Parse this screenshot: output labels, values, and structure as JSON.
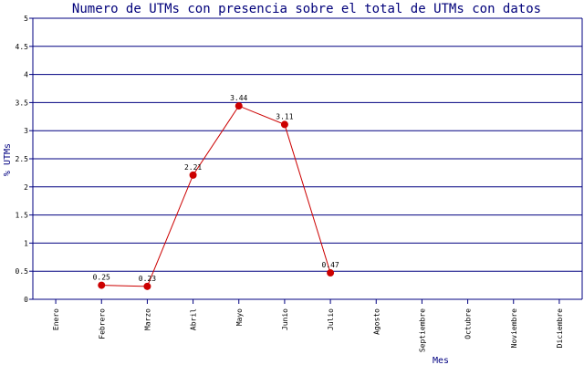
{
  "chart_data": {
    "type": "line",
    "title": "Numero de UTMs con presencia sobre el total de UTMs con datos",
    "xlabel": "Mes",
    "ylabel": "% UTMs",
    "categories": [
      "Enero",
      "Febrero",
      "Marzo",
      "Abril",
      "Mayo",
      "Junio",
      "Julio",
      "Agosto",
      "Septiembre",
      "Octubre",
      "Noviembre",
      "Diciembre"
    ],
    "series": [
      {
        "values": [
          null,
          0.25,
          0.23,
          2.21,
          3.44,
          3.11,
          0.47,
          null,
          null,
          null,
          null,
          null
        ],
        "labels": [
          null,
          "0.25",
          "0.23",
          "2.21",
          "3.44",
          "3.11",
          "0.47",
          null,
          null,
          null,
          null,
          null
        ]
      }
    ],
    "yticks": [
      "0",
      "0.5",
      "1",
      "1.5",
      "2",
      "2.5",
      "3",
      "3.5",
      "4",
      "4.5",
      "5"
    ],
    "ylim": [
      0,
      5
    ],
    "grid": "horizontal",
    "colors": {
      "line": "#cc0000",
      "marker": "#cc0000",
      "grid": "#000080",
      "axis": "#000080"
    }
  }
}
